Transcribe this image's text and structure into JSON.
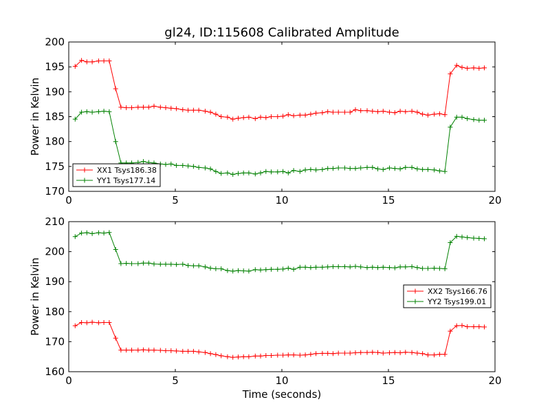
{
  "chart_data": {
    "type": "line",
    "title": "gl24, ID:115608 Calibrated Amplitude",
    "xlabel": "Time (seconds)",
    "grid": false,
    "panels": [
      {
        "ylabel": "Power in Kelvin",
        "xlim": [
          0,
          20
        ],
        "ylim": [
          170,
          200
        ],
        "xticks": [
          0,
          5,
          10,
          15,
          20
        ],
        "yticks": [
          170,
          175,
          180,
          185,
          190,
          195,
          200
        ],
        "legend_position": "lower-left",
        "x": [
          0.3,
          0.6,
          0.85,
          1.1,
          1.4,
          1.65,
          1.9,
          2.2,
          2.45,
          2.7,
          2.95,
          3.25,
          3.5,
          3.75,
          4.0,
          4.3,
          4.55,
          4.8,
          5.05,
          5.35,
          5.6,
          5.85,
          6.1,
          6.4,
          6.65,
          6.9,
          7.15,
          7.45,
          7.7,
          7.95,
          8.2,
          8.45,
          8.75,
          9.0,
          9.25,
          9.5,
          9.8,
          10.05,
          10.3,
          10.55,
          10.85,
          11.1,
          11.35,
          11.6,
          11.9,
          12.15,
          12.4,
          12.65,
          12.95,
          13.2,
          13.45,
          13.7,
          14.0,
          14.25,
          14.5,
          14.75,
          15.05,
          15.3,
          15.55,
          15.8,
          16.1,
          16.35,
          16.6,
          16.85,
          17.15,
          17.4,
          17.65,
          17.9,
          18.2,
          18.45,
          18.7,
          19.0,
          19.25,
          19.5
        ],
        "series": [
          {
            "name": "XX1 Tsys186.38",
            "color": "#ff0000",
            "values": [
              195.1,
              196.3,
              196.0,
              196.0,
              196.2,
              196.2,
              196.2,
              190.6,
              186.9,
              186.8,
              186.8,
              186.9,
              186.9,
              186.9,
              187.1,
              186.9,
              186.8,
              186.7,
              186.6,
              186.4,
              186.3,
              186.3,
              186.3,
              186.1,
              185.9,
              185.5,
              185.0,
              184.9,
              184.5,
              184.7,
              184.8,
              184.9,
              184.6,
              184.9,
              184.8,
              185.0,
              185.0,
              185.1,
              185.4,
              185.2,
              185.3,
              185.3,
              185.5,
              185.7,
              185.8,
              186.0,
              185.9,
              185.9,
              185.9,
              185.9,
              186.4,
              186.2,
              186.2,
              186.1,
              186.0,
              186.1,
              185.9,
              185.8,
              186.1,
              186.0,
              186.1,
              185.9,
              185.5,
              185.3,
              185.5,
              185.6,
              185.4,
              193.6,
              195.3,
              194.9,
              194.7,
              194.8,
              194.7,
              194.8
            ]
          },
          {
            "name": "YY1 Tsys177.14",
            "color": "#008000",
            "values": [
              184.5,
              185.9,
              186.0,
              185.9,
              186.0,
              186.1,
              186.0,
              180.0,
              175.7,
              175.7,
              175.7,
              175.8,
              176.0,
              175.8,
              175.7,
              175.5,
              175.4,
              175.5,
              175.2,
              175.2,
              175.1,
              175.0,
              174.8,
              174.7,
              174.5,
              174.0,
              173.6,
              173.7,
              173.4,
              173.6,
              173.7,
              173.7,
              173.5,
              173.7,
              174.0,
              173.9,
              173.9,
              174.0,
              173.7,
              174.2,
              174.0,
              174.3,
              174.4,
              174.3,
              174.4,
              174.6,
              174.6,
              174.7,
              174.7,
              174.6,
              174.6,
              174.7,
              174.8,
              174.8,
              174.5,
              174.4,
              174.7,
              174.6,
              174.5,
              174.8,
              174.8,
              174.5,
              174.4,
              174.4,
              174.3,
              174.1,
              174.0,
              182.9,
              184.9,
              184.9,
              184.6,
              184.4,
              184.3,
              184.3
            ]
          }
        ]
      },
      {
        "ylabel": "Power in Kelvin",
        "xlim": [
          0,
          20
        ],
        "ylim": [
          160,
          210
        ],
        "xticks": [
          0,
          5,
          10,
          15,
          20
        ],
        "yticks": [
          160,
          170,
          180,
          190,
          200,
          210
        ],
        "legend_position": "center-right",
        "x": [
          0.3,
          0.6,
          0.85,
          1.1,
          1.4,
          1.65,
          1.9,
          2.2,
          2.45,
          2.7,
          2.95,
          3.25,
          3.5,
          3.75,
          4.0,
          4.3,
          4.55,
          4.8,
          5.05,
          5.35,
          5.6,
          5.85,
          6.1,
          6.4,
          6.65,
          6.9,
          7.15,
          7.45,
          7.7,
          7.95,
          8.2,
          8.45,
          8.75,
          9.0,
          9.25,
          9.5,
          9.8,
          10.05,
          10.3,
          10.55,
          10.85,
          11.1,
          11.35,
          11.6,
          11.9,
          12.15,
          12.4,
          12.65,
          12.95,
          13.2,
          13.45,
          13.7,
          14.0,
          14.25,
          14.5,
          14.75,
          15.05,
          15.3,
          15.55,
          15.8,
          16.1,
          16.35,
          16.6,
          16.85,
          17.15,
          17.4,
          17.65,
          17.9,
          18.2,
          18.45,
          18.7,
          19.0,
          19.25,
          19.5
        ],
        "series": [
          {
            "name": "XX2 Tsys166.76",
            "color": "#ff0000",
            "values": [
              175.3,
              176.4,
              176.3,
              176.5,
              176.3,
              176.4,
              176.4,
              171.2,
              167.2,
              167.2,
              167.2,
              167.2,
              167.3,
              167.2,
              167.2,
              167.1,
              167.0,
              167.0,
              166.9,
              166.8,
              166.8,
              166.8,
              166.6,
              166.4,
              166.0,
              165.7,
              165.3,
              165.0,
              164.8,
              164.9,
              165.0,
              165.0,
              165.2,
              165.2,
              165.4,
              165.4,
              165.5,
              165.5,
              165.6,
              165.6,
              165.5,
              165.6,
              165.8,
              166.0,
              166.1,
              166.1,
              166.0,
              166.2,
              166.2,
              166.2,
              166.3,
              166.4,
              166.4,
              166.5,
              166.4,
              166.2,
              166.3,
              166.4,
              166.3,
              166.5,
              166.4,
              166.2,
              166.0,
              165.6,
              165.6,
              165.8,
              165.8,
              173.5,
              175.3,
              175.4,
              175.0,
              175.0,
              175.0,
              174.9
            ]
          },
          {
            "name": "YY2 Tsys199.01",
            "color": "#008000",
            "values": [
              205.0,
              206.2,
              206.3,
              206.0,
              206.3,
              206.2,
              206.4,
              200.7,
              196.0,
              196.1,
              196.0,
              196.0,
              196.2,
              196.2,
              195.9,
              195.8,
              195.8,
              195.8,
              195.7,
              195.8,
              195.4,
              195.3,
              195.3,
              194.9,
              194.5,
              194.3,
              194.3,
              193.7,
              193.5,
              193.7,
              193.6,
              193.5,
              194.0,
              193.9,
              194.0,
              194.1,
              194.1,
              194.2,
              194.5,
              194.1,
              194.8,
              194.8,
              194.7,
              194.8,
              194.8,
              194.9,
              195.0,
              195.0,
              195.0,
              194.9,
              195.1,
              194.9,
              194.7,
              194.8,
              194.7,
              194.8,
              194.7,
              194.6,
              194.9,
              194.9,
              195.0,
              194.7,
              194.4,
              194.4,
              194.5,
              194.4,
              194.3,
              203.0,
              205.1,
              204.9,
              204.7,
              204.5,
              204.4,
              204.3
            ]
          }
        ]
      }
    ]
  }
}
